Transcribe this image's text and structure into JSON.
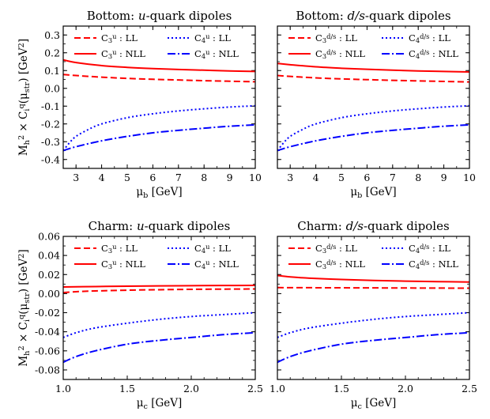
{
  "figure": {
    "ylabel_top": "M_h^2 × C_i^q(μ_str) [GeV^2]",
    "ylabel_bottom": "M_h^2 × C_i^q(μ_str) [GeV^2]"
  },
  "chart_data": [
    {
      "type": "line",
      "title": "Bottom: u-quark dipoles",
      "xlabel": "μ_b [GeV]",
      "ylabel": "M_h^2 × C_i^q(μ_str) [GeV^2]",
      "xlim": [
        2.5,
        10
      ],
      "ylim": [
        -0.45,
        0.35
      ],
      "xticks": [
        3,
        4,
        5,
        6,
        7,
        8,
        9,
        10
      ],
      "yticks": [
        -0.4,
        -0.3,
        -0.2,
        -0.1,
        0.0,
        0.1,
        0.2,
        0.3
      ],
      "legend_position": "top",
      "series": [
        {
          "name": "C_3^u : LL",
          "color": "#ff0000",
          "dash": "dashed",
          "x": [
            2.5,
            3,
            4,
            5,
            6,
            7,
            8,
            9,
            10
          ],
          "y": [
            0.078,
            0.072,
            0.063,
            0.056,
            0.051,
            0.047,
            0.043,
            0.04,
            0.037
          ]
        },
        {
          "name": "C_3^u : NLL",
          "color": "#ff0000",
          "dash": "solid",
          "x": [
            2.5,
            3,
            4,
            5,
            6,
            7,
            8,
            9,
            10
          ],
          "y": [
            0.16,
            0.145,
            0.128,
            0.118,
            0.111,
            0.106,
            0.102,
            0.098,
            0.095
          ]
        },
        {
          "name": "C_4^u : LL",
          "color": "#0000ff",
          "dash": "dotted",
          "x": [
            2.5,
            2.75,
            3,
            3.5,
            4,
            5,
            6,
            7,
            8,
            9,
            10
          ],
          "y": [
            -0.35,
            -0.305,
            -0.27,
            -0.23,
            -0.2,
            -0.165,
            -0.143,
            -0.127,
            -0.115,
            -0.105,
            -0.098
          ]
        },
        {
          "name": "C_4^u : NLL",
          "color": "#0000ff",
          "dash": "dashdot",
          "x": [
            2.5,
            3,
            4,
            5,
            6,
            7,
            8,
            9,
            10
          ],
          "y": [
            -0.35,
            -0.328,
            -0.295,
            -0.27,
            -0.25,
            -0.236,
            -0.224,
            -0.213,
            -0.205
          ]
        }
      ]
    },
    {
      "type": "line",
      "title": "Bottom: d/s-quark dipoles",
      "xlabel": "μ_b [GeV]",
      "ylabel": "",
      "xlim": [
        2.5,
        10
      ],
      "ylim": [
        -0.45,
        0.35
      ],
      "xticks": [
        3,
        4,
        5,
        6,
        7,
        8,
        9,
        10
      ],
      "yticks": [
        -0.4,
        -0.3,
        -0.2,
        -0.1,
        0.0,
        0.1,
        0.2,
        0.3
      ],
      "legend_position": "top",
      "series": [
        {
          "name": "C_3^{d/s} : LL",
          "color": "#ff0000",
          "dash": "dashed",
          "x": [
            2.5,
            3,
            4,
            5,
            6,
            7,
            8,
            9,
            10
          ],
          "y": [
            0.072,
            0.067,
            0.059,
            0.053,
            0.049,
            0.045,
            0.042,
            0.039,
            0.036
          ]
        },
        {
          "name": "C_3^{d/s} : NLL",
          "color": "#ff0000",
          "dash": "solid",
          "x": [
            2.5,
            3,
            4,
            5,
            6,
            7,
            8,
            9,
            10
          ],
          "y": [
            0.14,
            0.133,
            0.121,
            0.113,
            0.107,
            0.102,
            0.098,
            0.095,
            0.092
          ]
        },
        {
          "name": "C_4^{d/s} : LL",
          "color": "#0000ff",
          "dash": "dotted",
          "x": [
            2.5,
            2.75,
            3,
            3.5,
            4,
            5,
            6,
            7,
            8,
            9,
            10
          ],
          "y": [
            -0.35,
            -0.305,
            -0.27,
            -0.23,
            -0.2,
            -0.165,
            -0.143,
            -0.127,
            -0.115,
            -0.105,
            -0.098
          ]
        },
        {
          "name": "C_4^{d/s} : NLL",
          "color": "#0000ff",
          "dash": "dashdot",
          "x": [
            2.5,
            3,
            4,
            5,
            6,
            7,
            8,
            9,
            10
          ],
          "y": [
            -0.35,
            -0.328,
            -0.295,
            -0.27,
            -0.25,
            -0.236,
            -0.224,
            -0.213,
            -0.205
          ]
        }
      ]
    },
    {
      "type": "line",
      "title": "Charm: u-quark dipoles",
      "xlabel": "μ_c [GeV]",
      "ylabel": "M_h^2 × C_i^q(μ_str) [GeV^2]",
      "xlim": [
        1.0,
        2.5
      ],
      "ylim": [
        -0.09,
        0.06
      ],
      "xticks": [
        1.0,
        1.5,
        2.0,
        2.5
      ],
      "yticks": [
        -0.08,
        -0.06,
        -0.04,
        -0.02,
        0.0,
        0.02,
        0.04,
        0.06
      ],
      "legend_position": "top",
      "series": [
        {
          "name": "C_3^u : LL",
          "color": "#ff0000",
          "dash": "dashed",
          "x": [
            1.0,
            1.1,
            1.25,
            1.5,
            1.75,
            2.0,
            2.25,
            2.5
          ],
          "y": [
            0.001,
            0.002,
            0.0028,
            0.0036,
            0.0041,
            0.0045,
            0.0047,
            0.0049
          ]
        },
        {
          "name": "C_3^u : NLL",
          "color": "#ff0000",
          "dash": "solid",
          "x": [
            1.0,
            1.25,
            1.5,
            1.75,
            2.0,
            2.25,
            2.5
          ],
          "y": [
            0.007,
            0.0074,
            0.0078,
            0.0081,
            0.0083,
            0.0085,
            0.0086
          ]
        },
        {
          "name": "C_4^u : LL",
          "color": "#0000ff",
          "dash": "dotted",
          "x": [
            1.0,
            1.1,
            1.25,
            1.5,
            1.75,
            2.0,
            2.25,
            2.5
          ],
          "y": [
            -0.046,
            -0.041,
            -0.036,
            -0.031,
            -0.027,
            -0.024,
            -0.022,
            -0.02
          ]
        },
        {
          "name": "C_4^u : NLL",
          "color": "#0000ff",
          "dash": "dashdot",
          "x": [
            1.0,
            1.1,
            1.25,
            1.5,
            1.75,
            2.0,
            2.25,
            2.5
          ],
          "y": [
            -0.072,
            -0.066,
            -0.06,
            -0.053,
            -0.049,
            -0.046,
            -0.043,
            -0.041
          ]
        }
      ]
    },
    {
      "type": "line",
      "title": "Charm: d/s-quark dipoles",
      "xlabel": "μ_c [GeV]",
      "ylabel": "",
      "xlim": [
        1.0,
        2.5
      ],
      "ylim": [
        -0.09,
        0.06
      ],
      "xticks": [
        1.0,
        1.5,
        2.0,
        2.5
      ],
      "yticks": [
        -0.08,
        -0.06,
        -0.04,
        -0.02,
        0.0,
        0.02,
        0.04,
        0.06
      ],
      "legend_position": "top",
      "series": [
        {
          "name": "C_3^{d/s} : LL",
          "color": "#ff0000",
          "dash": "dashed",
          "x": [
            1.0,
            1.25,
            1.5,
            1.75,
            2.0,
            2.25,
            2.5
          ],
          "y": [
            0.0063,
            0.0062,
            0.0061,
            0.006,
            0.0059,
            0.0058,
            0.0057
          ]
        },
        {
          "name": "C_3^{d/s} : NLL",
          "color": "#ff0000",
          "dash": "solid",
          "x": [
            1.0,
            1.1,
            1.25,
            1.5,
            1.75,
            2.0,
            2.25,
            2.5
          ],
          "y": [
            0.019,
            0.0175,
            0.0162,
            0.0148,
            0.0138,
            0.0131,
            0.0126,
            0.0121
          ]
        },
        {
          "name": "C_4^{d/s} : LL",
          "color": "#0000ff",
          "dash": "dotted",
          "x": [
            1.0,
            1.1,
            1.25,
            1.5,
            1.75,
            2.0,
            2.25,
            2.5
          ],
          "y": [
            -0.046,
            -0.041,
            -0.036,
            -0.031,
            -0.027,
            -0.024,
            -0.022,
            -0.02
          ]
        },
        {
          "name": "C_4^{d/s} : NLL",
          "color": "#0000ff",
          "dash": "dashdot",
          "x": [
            1.0,
            1.1,
            1.25,
            1.5,
            1.75,
            2.0,
            2.25,
            2.5
          ],
          "y": [
            -0.072,
            -0.066,
            -0.06,
            -0.053,
            -0.049,
            -0.046,
            -0.043,
            -0.041
          ]
        }
      ]
    }
  ]
}
